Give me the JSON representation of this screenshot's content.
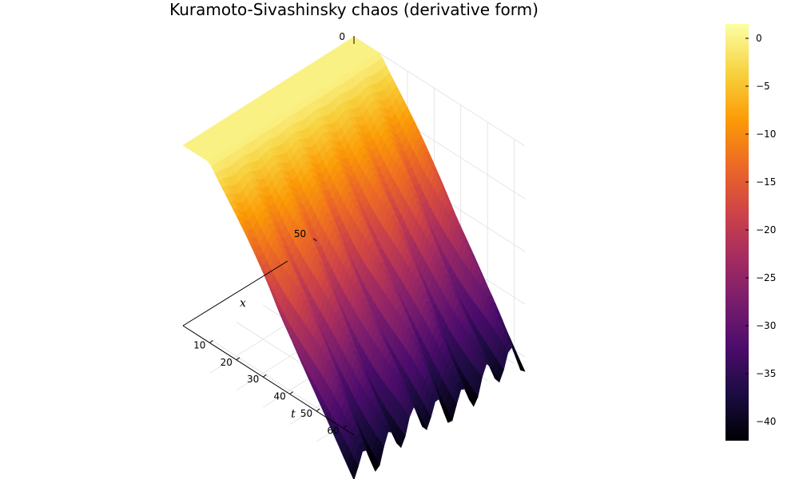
{
  "chart_data": {
    "type": "surface",
    "title": "Kuramoto-Sivashinsky chaos (derivative form)",
    "x": {
      "label": "x",
      "range": [
        0,
        64
      ],
      "ticks": [
        50
      ]
    },
    "t": {
      "label": "t",
      "range": [
        0,
        64
      ],
      "ticks": [
        10,
        20,
        30,
        40,
        50,
        60
      ]
    },
    "z": {
      "range": [
        -42,
        1.5
      ],
      "ticks": [
        0
      ]
    },
    "colorbar": {
      "colormap": "inferno",
      "range": [
        -42,
        1.5
      ],
      "ticks": [
        0,
        -5,
        -10,
        -15,
        -20,
        -25,
        -30,
        -35,
        -40
      ]
    },
    "surface": {
      "flat_value_until_t": 10,
      "final_value_at_t_max": -40,
      "num_ridges": 7,
      "description_values": [
        {
          "t": 0,
          "z": 0
        },
        {
          "t": 10,
          "z": 0
        },
        {
          "t": 20,
          "z": -8
        },
        {
          "t": 30,
          "z": -16
        },
        {
          "t": 40,
          "z": -24
        },
        {
          "t": 50,
          "z": -32
        },
        {
          "t": 64,
          "z": -40
        }
      ]
    },
    "grid": true
  },
  "colors": {
    "colormap_stops": [
      "#000004",
      "#1b0c41",
      "#4a0c6b",
      "#781c6d",
      "#a52c60",
      "#cf4446",
      "#ed6925",
      "#fb9b06",
      "#f7d13d",
      "#fcffa4"
    ],
    "axis": "#000000",
    "grid": "#e0e0e0"
  }
}
